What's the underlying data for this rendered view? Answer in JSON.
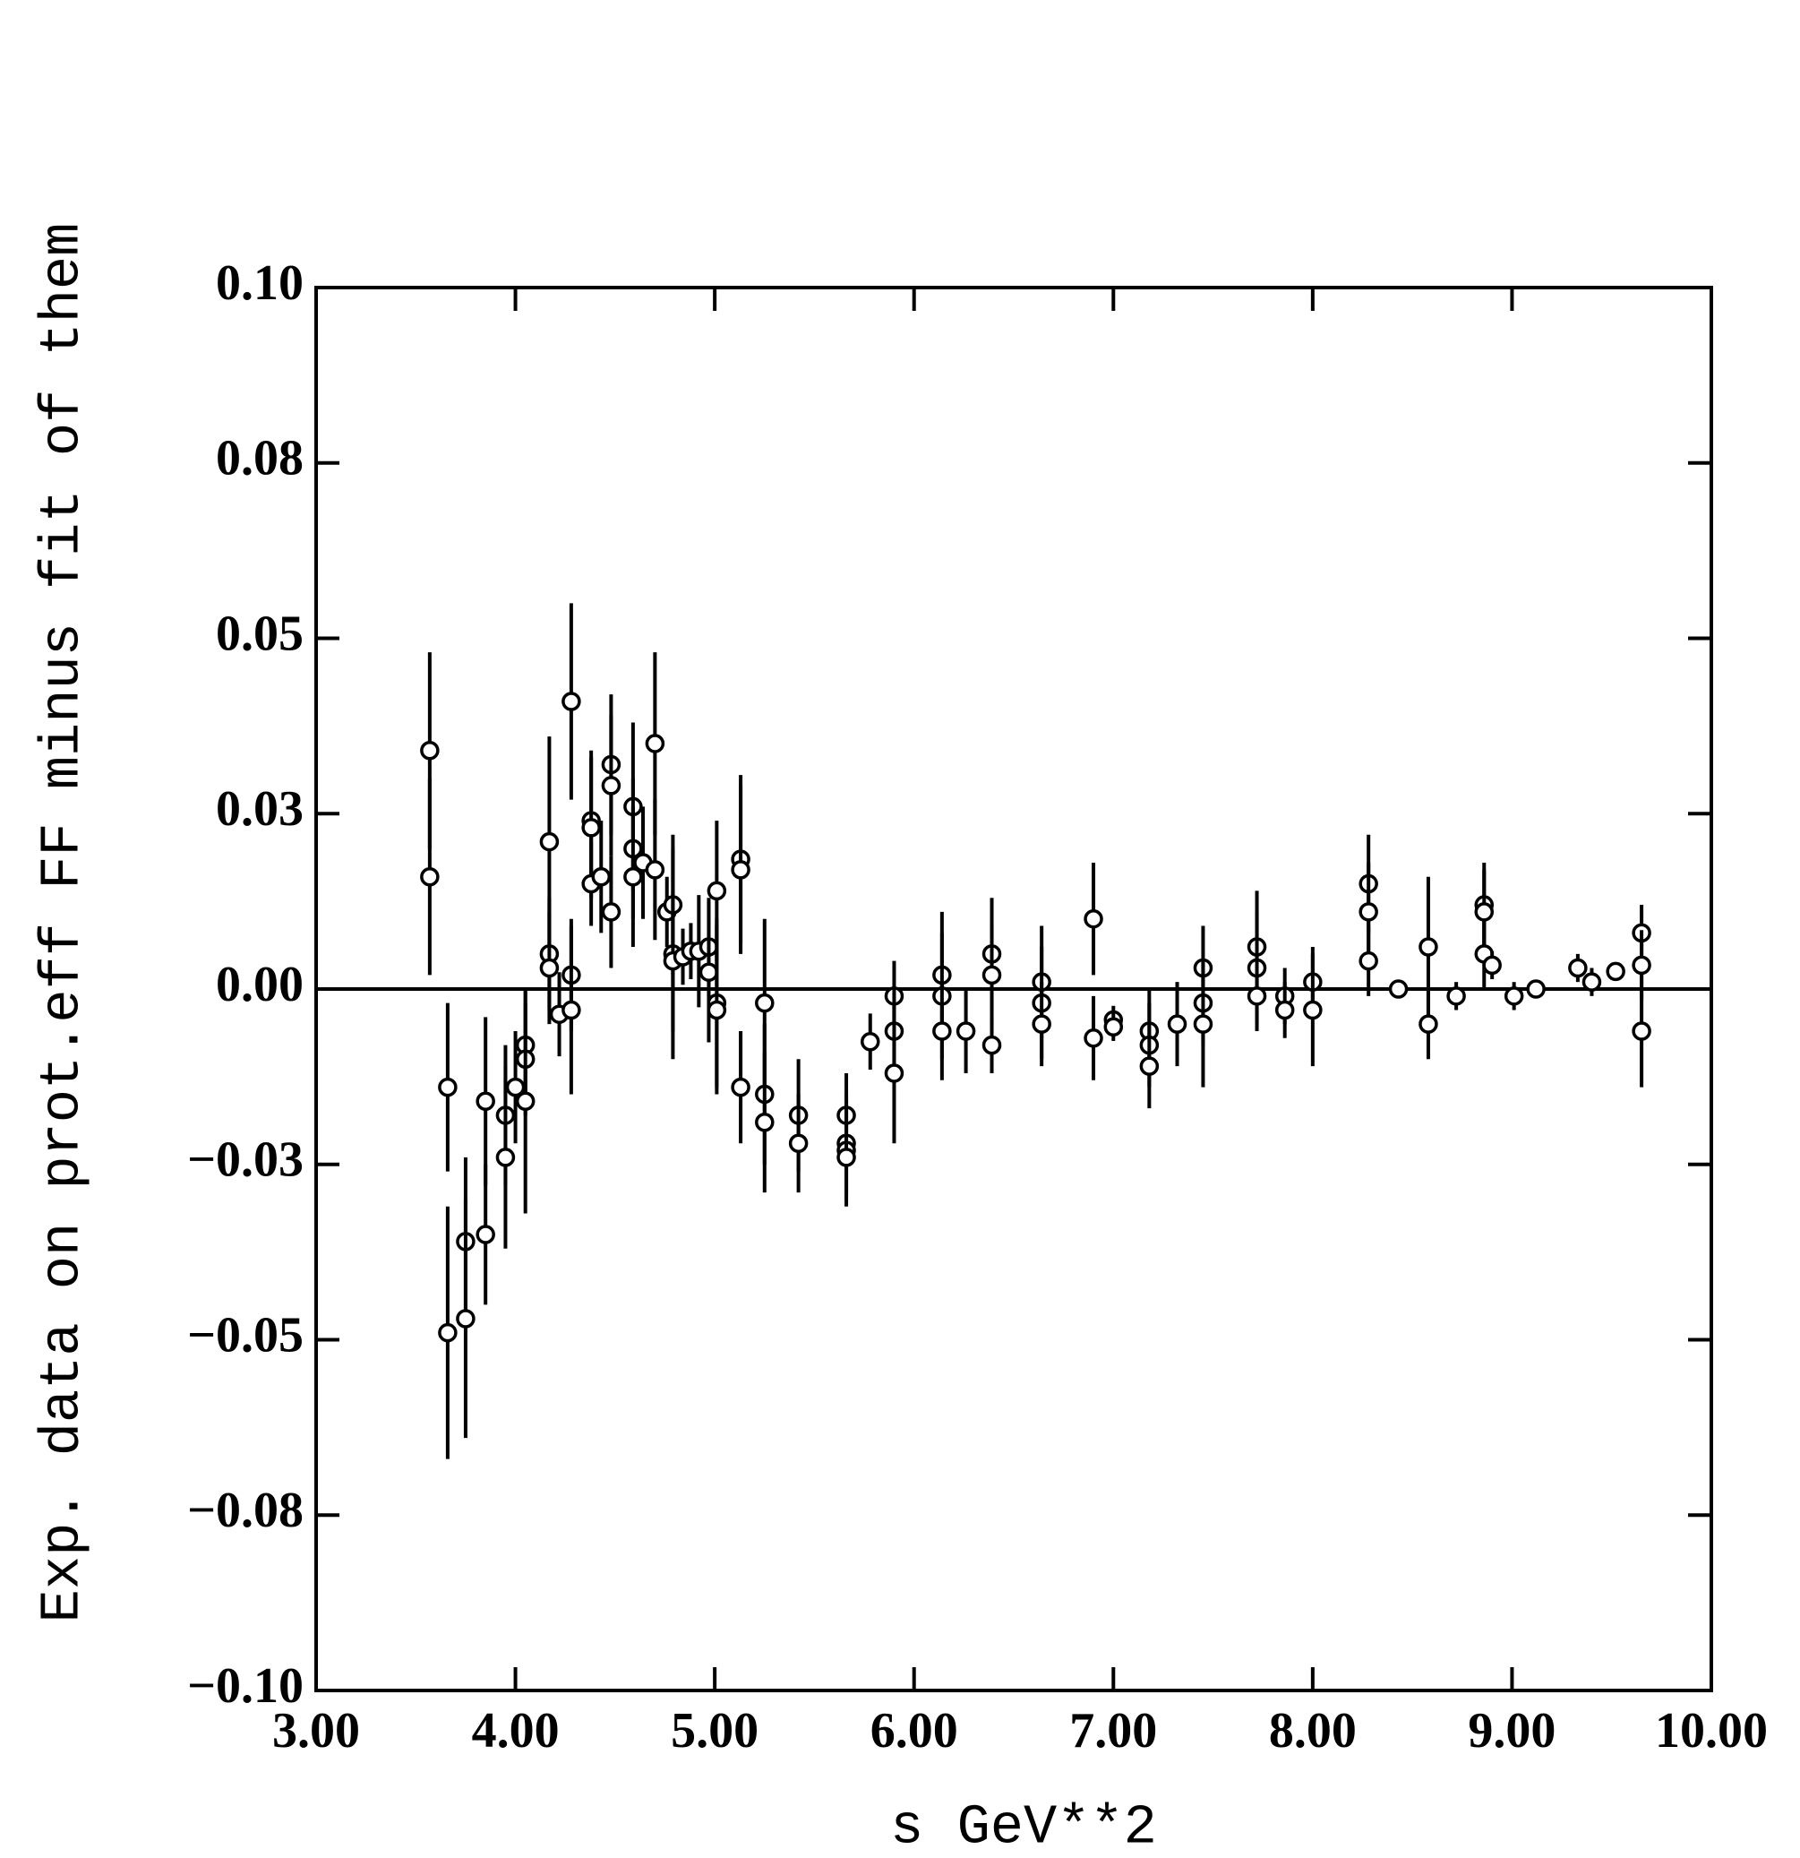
{
  "chart_data": {
    "type": "scatter",
    "xlabel": "s  GeV**2",
    "ylabel": "Exp. data on prot.eff FF minus fit of them",
    "xlim": [
      3,
      10
    ],
    "ylim": [
      -0.1,
      0.1
    ],
    "xticks": [
      {
        "value": 3,
        "label": "3.00"
      },
      {
        "value": 4,
        "label": "4.00"
      },
      {
        "value": 5,
        "label": "5.00"
      },
      {
        "value": 6,
        "label": "6.00"
      },
      {
        "value": 7,
        "label": "7.00"
      },
      {
        "value": 8,
        "label": "8.00"
      },
      {
        "value": 9,
        "label": "9.00"
      },
      {
        "value": 10,
        "label": "10.00"
      }
    ],
    "yticks": [
      {
        "value": -0.1,
        "label": "−0.10"
      },
      {
        "value": -0.075,
        "label": "−0.08"
      },
      {
        "value": -0.05,
        "label": "−0.05"
      },
      {
        "value": -0.025,
        "label": "−0.03"
      },
      {
        "value": 0,
        "label": "0.00"
      },
      {
        "value": 0.025,
        "label": "0.03"
      },
      0.05,
      {
        "value": 0.075,
        "label": "0.08"
      },
      {
        "value": 0.1,
        "label": "0.10"
      }
    ],
    "reference_line": 0,
    "color": "#000000",
    "x": [
      3.57,
      3.57,
      3.66,
      3.66,
      3.75,
      3.75,
      3.85,
      3.85,
      3.95,
      3.95,
      4.0,
      4.05,
      4.05,
      4.05,
      4.17,
      4.17,
      4.17,
      4.22,
      4.28,
      4.28,
      4.28,
      4.38,
      4.38,
      4.38,
      4.43,
      4.48,
      4.48,
      4.48,
      4.59,
      4.59,
      4.59,
      4.64,
      4.7,
      4.7,
      4.76,
      4.79,
      4.79,
      4.79,
      4.84,
      4.88,
      4.92,
      4.97,
      4.97,
      5.01,
      5.01,
      5.01,
      5.13,
      5.13,
      5.13,
      5.25,
      5.25,
      5.25,
      5.42,
      5.42,
      5.66,
      5.66,
      5.66,
      5.66,
      5.78,
      5.9,
      5.9,
      5.9,
      6.14,
      6.14,
      6.14,
      6.26,
      6.39,
      6.39,
      6.39,
      6.64,
      6.64,
      6.64,
      6.9,
      6.9,
      7.0,
      7.0,
      7.18,
      7.18,
      7.18,
      7.32,
      7.45,
      7.45,
      7.45,
      7.72,
      7.72,
      7.72,
      7.86,
      7.86,
      8.0,
      8.0,
      8.28,
      8.28,
      8.28,
      8.43,
      8.58,
      8.58,
      8.72,
      8.86,
      8.86,
      8.86,
      8.9,
      9.01,
      9.12,
      9.33,
      9.4,
      9.52,
      9.65,
      9.65,
      9.65
    ],
    "values": [
      0.034,
      0.016,
      -0.014,
      -0.049,
      -0.036,
      -0.047,
      -0.016,
      -0.035,
      -0.018,
      -0.024,
      -0.014,
      -0.008,
      -0.01,
      -0.016,
      0.021,
      0.005,
      0.003,
      -0.0036,
      0.041,
      0.002,
      -0.003,
      0.024,
      0.023,
      0.015,
      0.016,
      0.032,
      0.029,
      0.011,
      0.026,
      0.02,
      0.016,
      0.018,
      0.035,
      0.017,
      0.011,
      0.012,
      0.005,
      0.004,
      0.0046,
      0.0054,
      0.0054,
      0.006,
      0.0024,
      0.014,
      -0.002,
      -0.003,
      0.0185,
      0.017,
      -0.014,
      -0.002,
      -0.015,
      -0.019,
      -0.018,
      -0.022,
      -0.018,
      -0.022,
      -0.023,
      -0.024,
      -0.0075,
      -0.001,
      -0.006,
      -0.012,
      0.002,
      -0.001,
      -0.006,
      -0.006,
      0.005,
      0.002,
      -0.008,
      0.001,
      -0.002,
      -0.005,
      0.01,
      -0.007,
      -0.0044,
      -0.0054,
      -0.006,
      -0.008,
      -0.011,
      -0.005,
      0.003,
      -0.002,
      -0.005,
      0.006,
      0.003,
      -0.001,
      -0.001,
      -0.003,
      0.001,
      -0.003,
      0.015,
      0.011,
      0.004,
      0,
      0.006,
      -0.005,
      -0.001,
      0.012,
      0.011,
      0.005,
      0.0034,
      -0.001,
      0,
      0.003,
      0.001,
      0.0025,
      0.008,
      0.0034,
      -0.006
    ],
    "errors": [
      0.014,
      0.014,
      0.012,
      0.018,
      0.012,
      0.017,
      0.012,
      0.01,
      0.01,
      0.013,
      0.008,
      0.008,
      0.008,
      0.016,
      0.015,
      0.008,
      0.008,
      0.006,
      0.014,
      0.008,
      0.012,
      0.01,
      0.01,
      0.006,
      0.008,
      0.01,
      0.01,
      0.008,
      0.012,
      0.01,
      0.01,
      0.008,
      0.013,
      0.01,
      0.005,
      0.01,
      0.015,
      0.01,
      0.004,
      0.004,
      0.008,
      0.007,
      0.01,
      0.01,
      0.012,
      0.012,
      0.012,
      0.012,
      0.008,
      0.012,
      0.01,
      0.01,
      0.008,
      0.007,
      0.006,
      0.007,
      0.007,
      0.007,
      0.004,
      0.005,
      0.006,
      0.01,
      0.009,
      0.009,
      0.007,
      0.006,
      0.008,
      0.008,
      0.004,
      0.008,
      0.008,
      0.006,
      0.008,
      0.006,
      0.002,
      0.002,
      0.006,
      0.006,
      0.006,
      0.006,
      0.006,
      0.006,
      0.009,
      0.008,
      0.008,
      0.005,
      0.004,
      0.004,
      0.005,
      0.008,
      0.007,
      0.007,
      0.005,
      0.001,
      0.01,
      0.005,
      0.002,
      0.006,
      0.006,
      0.005,
      0.002,
      0.002,
      0.001,
      0.002,
      0.002,
      0.001,
      0.004,
      0.005,
      0.008
    ]
  }
}
